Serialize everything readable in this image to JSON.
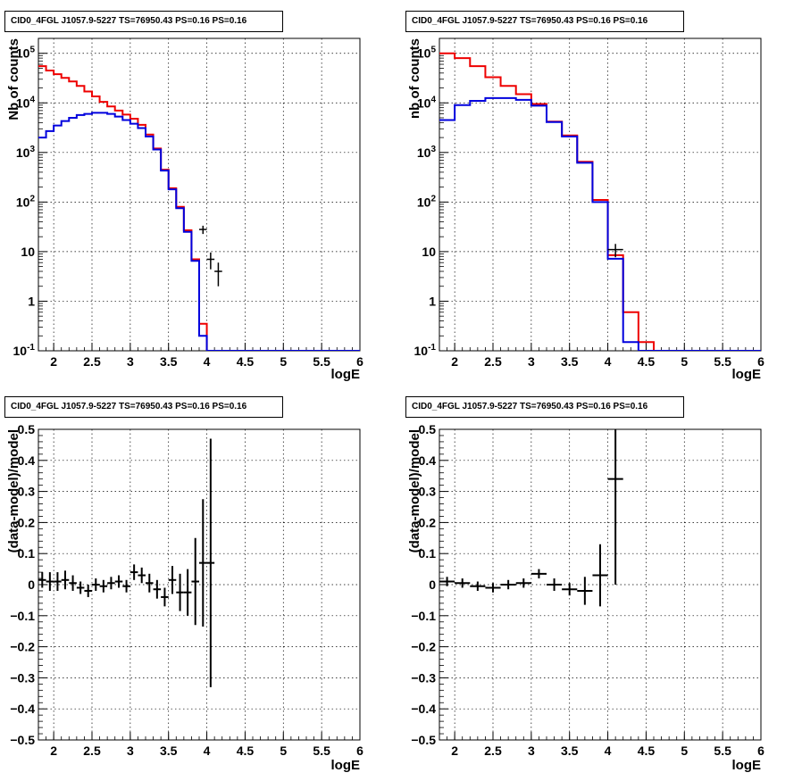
{
  "colors": {
    "data": "#000000",
    "model_red": "#ee0000",
    "model_blue": "#0000dd",
    "grid": "#000000"
  },
  "chart_data": [
    {
      "type": "histogram-step",
      "title": "CID0_4FGL J1057.9-5227 TS=76950.43 PS=0.16 PS=0.16",
      "xlabel": "logE",
      "ylabel": "Nb of counts",
      "xlim": [
        1.8,
        6.0
      ],
      "ylim": [
        0.1,
        200000
      ],
      "yscale": "log",
      "grid": true,
      "x_ticks": [
        "2",
        "2.5",
        "3",
        "3.5",
        "4",
        "4.5",
        "5",
        "5.5",
        "6"
      ],
      "y_ticks": [
        "10^-1",
        "1",
        "10",
        "10^2",
        "10^3",
        "10^4",
        "10^5"
      ],
      "bin_width": 0.1,
      "bin_lows": [
        1.8,
        1.9,
        2.0,
        2.1,
        2.2,
        2.3,
        2.4,
        2.5,
        2.6,
        2.7,
        2.8,
        2.9,
        3.0,
        3.1,
        3.2,
        3.3,
        3.4,
        3.5,
        3.6,
        3.7,
        3.8,
        3.9,
        4.0,
        4.1,
        4.2,
        4.3,
        4.4,
        4.5,
        4.6,
        4.7,
        4.8,
        4.9,
        5.0,
        5.1,
        5.2,
        5.3,
        5.4,
        5.5,
        5.6,
        5.7,
        5.8,
        5.9
      ],
      "series": [
        {
          "color": "red",
          "values": [
            55000,
            45000,
            38000,
            32000,
            27000,
            22000,
            17000,
            13500,
            10500,
            8500,
            7000,
            5800,
            4800,
            3600,
            2300,
            1200,
            450,
            190,
            80,
            27,
            7,
            0.35,
            0.1,
            0.1,
            0.1,
            0.1,
            0.1,
            0.1,
            0.1,
            0.1,
            0.1,
            0.1,
            0.1,
            0.1,
            0.1,
            0.1,
            0.1,
            0.1,
            0.1,
            0.1,
            0.1,
            0.1
          ]
        },
        {
          "color": "blue",
          "values": [
            2000,
            2700,
            3500,
            4300,
            5000,
            5700,
            6000,
            6300,
            6300,
            6000,
            5300,
            4500,
            3800,
            3100,
            2100,
            1150,
            430,
            180,
            75,
            25,
            6.5,
            0.2,
            0.1,
            0.1,
            0.1,
            0.1,
            0.1,
            0.1,
            0.1,
            0.1,
            0.1,
            0.1,
            0.1,
            0.1,
            0.1,
            0.1,
            0.1,
            0.1,
            0.1,
            0.1,
            0.1,
            0.1
          ]
        }
      ],
      "data_points": [
        {
          "x": 3.95,
          "y": 28,
          "yerr": 5.3,
          "xerr": 0.05
        },
        {
          "x": 4.05,
          "y": 7,
          "yerr": 2.6,
          "xerr": 0.05
        },
        {
          "x": 4.15,
          "y": 4,
          "yerr": 2,
          "xerr": 0.05
        }
      ]
    },
    {
      "type": "histogram-step",
      "title": "CID0_4FGL J1057.9-5227 TS=76950.43 PS=0.16 PS=0.16",
      "xlabel": "logE",
      "ylabel": "nb of counts",
      "xlim": [
        1.8,
        6.0
      ],
      "ylim": [
        0.1,
        200000
      ],
      "yscale": "log",
      "grid": true,
      "x_ticks": [
        "2",
        "2.5",
        "3",
        "3.5",
        "4",
        "4.5",
        "5",
        "5.5",
        "6"
      ],
      "y_ticks": [
        "10^-1",
        "1",
        "10",
        "10^2",
        "10^3",
        "10^4",
        "10^5"
      ],
      "bin_width": 0.2,
      "bin_lows": [
        1.8,
        2.0,
        2.2,
        2.4,
        2.6,
        2.8,
        3.0,
        3.2,
        3.4,
        3.6,
        3.8,
        4.0,
        4.2,
        4.4,
        4.6,
        4.8,
        5.0,
        5.2,
        5.4,
        5.6,
        5.8
      ],
      "series": [
        {
          "color": "red",
          "values": [
            100000,
            80000,
            55000,
            33000,
            22000,
            15000,
            9500,
            4200,
            2200,
            650,
            110,
            8.5,
            0.6,
            0.15,
            0.1,
            0.1,
            0.1,
            0.1,
            0.1,
            0.1,
            0.1
          ]
        },
        {
          "color": "blue",
          "values": [
            4500,
            9000,
            11000,
            12500,
            12500,
            11500,
            8800,
            4100,
            2100,
            620,
            100,
            7.2,
            0.15,
            0.1,
            0.1,
            0.1,
            0.1,
            0.1,
            0.1,
            0.1,
            0.1
          ]
        }
      ],
      "data_points": [
        {
          "x": 4.1,
          "y": 11,
          "yerr": 3.3,
          "xerr": 0.1
        }
      ]
    },
    {
      "type": "scatter-errorbar",
      "title": "CID0_4FGL J1057.9-5227 TS=76950.43 PS=0.16 PS=0.16",
      "xlabel": "logE",
      "ylabel": "(data-model)/model",
      "xlim": [
        1.8,
        6.0
      ],
      "ylim": [
        -0.5,
        0.5
      ],
      "grid": true,
      "x_ticks": [
        "2",
        "2.5",
        "3",
        "3.5",
        "4",
        "4.5",
        "5",
        "5.5",
        "6"
      ],
      "y_ticks": [
        "−0.5",
        "−0.4",
        "−0.3",
        "−0.2",
        "−0.1",
        "0",
        "0.1",
        "0.2",
        "0.3",
        "0.4",
        "0.5"
      ],
      "points": [
        {
          "x": 1.85,
          "y": 0.015,
          "yerr": 0.025,
          "xerr": 0.05
        },
        {
          "x": 1.95,
          "y": 0.01,
          "yerr": 0.03,
          "xerr": 0.05
        },
        {
          "x": 2.05,
          "y": 0.01,
          "yerr": 0.03,
          "xerr": 0.05
        },
        {
          "x": 2.15,
          "y": 0.015,
          "yerr": 0.03,
          "xerr": 0.05
        },
        {
          "x": 2.25,
          "y": 0.005,
          "yerr": 0.025,
          "xerr": 0.05
        },
        {
          "x": 2.35,
          "y": -0.01,
          "yerr": 0.02,
          "xerr": 0.05
        },
        {
          "x": 2.45,
          "y": -0.02,
          "yerr": 0.02,
          "xerr": 0.05
        },
        {
          "x": 2.55,
          "y": 0.0,
          "yerr": 0.02,
          "xerr": 0.05
        },
        {
          "x": 2.65,
          "y": -0.005,
          "yerr": 0.02,
          "xerr": 0.05
        },
        {
          "x": 2.75,
          "y": 0.005,
          "yerr": 0.02,
          "xerr": 0.05
        },
        {
          "x": 2.85,
          "y": 0.01,
          "yerr": 0.02,
          "xerr": 0.05
        },
        {
          "x": 2.95,
          "y": -0.005,
          "yerr": 0.02,
          "xerr": 0.05
        },
        {
          "x": 3.05,
          "y": 0.04,
          "yerr": 0.025,
          "xerr": 0.05
        },
        {
          "x": 3.15,
          "y": 0.03,
          "yerr": 0.025,
          "xerr": 0.05
        },
        {
          "x": 3.25,
          "y": 0.005,
          "yerr": 0.03,
          "xerr": 0.05
        },
        {
          "x": 3.35,
          "y": -0.015,
          "yerr": 0.03,
          "xerr": 0.05
        },
        {
          "x": 3.45,
          "y": -0.04,
          "yerr": 0.03,
          "xerr": 0.05
        },
        {
          "x": 3.55,
          "y": 0.015,
          "yerr": 0.045,
          "xerr": 0.05
        },
        {
          "x": 3.65,
          "y": -0.025,
          "yerr": 0.06,
          "xerr": 0.05
        },
        {
          "x": 3.75,
          "y": -0.025,
          "yerr": 0.075,
          "xerr": 0.05
        },
        {
          "x": 3.85,
          "y": 0.01,
          "yerr": 0.14,
          "xerr": 0.05
        },
        {
          "x": 3.95,
          "y": 0.07,
          "yerr": 0.205,
          "xerr": 0.05
        },
        {
          "x": 4.05,
          "y": 0.07,
          "yerr": 0.4,
          "xerr": 0.05
        }
      ]
    },
    {
      "type": "scatter-errorbar",
      "title": "CID0_4FGL J1057.9-5227 TS=76950.43 PS=0.16 PS=0.16",
      "xlabel": "logE",
      "ylabel": "(data-model)/model",
      "xlim": [
        1.8,
        6.0
      ],
      "ylim": [
        -0.5,
        0.5
      ],
      "grid": true,
      "x_ticks": [
        "2",
        "2.5",
        "3",
        "3.5",
        "4",
        "4.5",
        "5",
        "5.5",
        "6"
      ],
      "y_ticks": [
        "−0.5",
        "−0.4",
        "−0.3",
        "−0.2",
        "−0.1",
        "0",
        "0.1",
        "0.2",
        "0.3",
        "0.4",
        "0.5"
      ],
      "points": [
        {
          "x": 1.9,
          "y": 0.01,
          "yerr": 0.015,
          "xerr": 0.1
        },
        {
          "x": 2.1,
          "y": 0.005,
          "yerr": 0.015,
          "xerr": 0.1
        },
        {
          "x": 2.3,
          "y": -0.005,
          "yerr": 0.015,
          "xerr": 0.1
        },
        {
          "x": 2.5,
          "y": -0.01,
          "yerr": 0.015,
          "xerr": 0.1
        },
        {
          "x": 2.7,
          "y": 0.0,
          "yerr": 0.015,
          "xerr": 0.1
        },
        {
          "x": 2.9,
          "y": 0.005,
          "yerr": 0.015,
          "xerr": 0.1
        },
        {
          "x": 3.1,
          "y": 0.035,
          "yerr": 0.015,
          "xerr": 0.1
        },
        {
          "x": 3.3,
          "y": 0.0,
          "yerr": 0.02,
          "xerr": 0.1
        },
        {
          "x": 3.5,
          "y": -0.015,
          "yerr": 0.02,
          "xerr": 0.1
        },
        {
          "x": 3.7,
          "y": -0.02,
          "yerr": 0.045,
          "xerr": 0.1
        },
        {
          "x": 3.9,
          "y": 0.03,
          "yerr": 0.1,
          "xerr": 0.1
        },
        {
          "x": 4.1,
          "y": 0.34,
          "yerr": 0.34,
          "xerr": 0.1
        }
      ]
    }
  ]
}
